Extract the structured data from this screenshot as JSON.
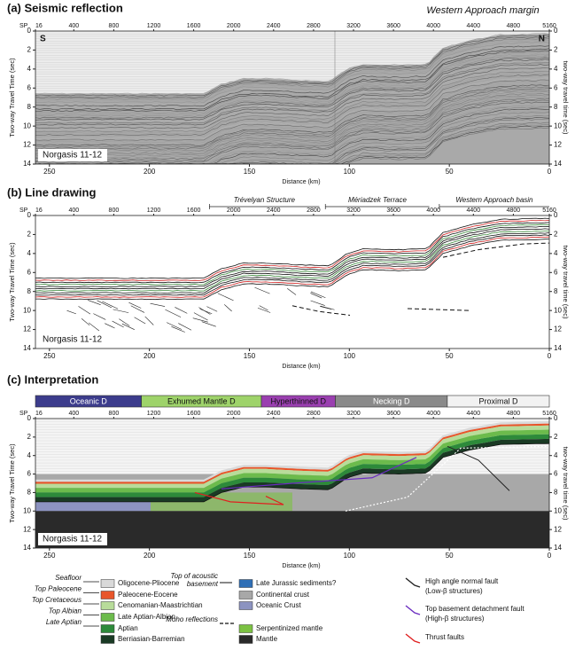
{
  "header": {
    "subtitle": "Western Approach margin"
  },
  "axes": {
    "sp_label": "SP",
    "sp_ticks": [
      16,
      400,
      800,
      1200,
      1600,
      2000,
      2400,
      2800,
      3200,
      3600,
      4000,
      4400,
      4800,
      5160
    ],
    "sp_lim": [
      16,
      5160
    ],
    "distance_ticks": [
      250,
      200,
      150,
      100,
      50,
      0
    ],
    "distance_lim": [
      257,
      0
    ],
    "twt_ticks": [
      0,
      2,
      4,
      6,
      8,
      10,
      12,
      14
    ],
    "twt_lim": [
      0,
      14
    ],
    "left_label": "Two-way Travel Time (sec)",
    "right_label": "two-way travel time (sec)",
    "x_label": "Distance (km)",
    "line_name": "Norgasis 11-12"
  },
  "panels": [
    {
      "title": "(a) Seismic reflection",
      "labels": [
        "S",
        "N"
      ]
    },
    {
      "title": "(b) Line drawing",
      "annotations": [
        {
          "text": "Trévelyan Structure",
          "span": [
            170,
            115
          ]
        },
        {
          "text": "Mériadzek Terrace",
          "span": [
            112,
            60
          ]
        },
        {
          "text": "Western Approach basin",
          "span": [
            55,
            0
          ]
        }
      ]
    },
    {
      "title": "(c) Interpretation",
      "domains": [
        {
          "label": "Oceanic D",
          "color": "#3c3c8c",
          "extent": [
            257,
            204
          ]
        },
        {
          "label": "Exhumed Mantle D",
          "color": "#9ed36a",
          "extent": [
            204,
            144
          ]
        },
        {
          "label": "Hyperthinned D",
          "color": "#9a3fb0",
          "extent": [
            144,
            107
          ]
        },
        {
          "label": "Necking D",
          "color": "#8a8a8a",
          "extent": [
            107,
            51
          ]
        },
        {
          "label": "Proximal D",
          "color": "#f2f2f2",
          "extent": [
            51,
            0
          ]
        }
      ]
    }
  ],
  "legend": {
    "horizons": [
      "Seafloor",
      "Top Paleocene",
      "Top Cretaceous",
      "Top Albian",
      "Late Aptian"
    ],
    "sediments": [
      {
        "label": "Oligocene-Pliocene",
        "color": "#d9d9d9"
      },
      {
        "label": "Paleocene-Eocene",
        "color": "#e8552a"
      },
      {
        "label": "Cenomanian-Maastrichtian",
        "color": "#b8dc9a"
      },
      {
        "label": "Late Aptian-Albian",
        "color": "#6cbb4c"
      },
      {
        "label": "Aptian",
        "color": "#2d8a3a"
      },
      {
        "label": "Berriasian-Barremian",
        "color": "#1a3a24"
      }
    ],
    "basement_label": [
      "Top of acoustic",
      "basement"
    ],
    "moho_label": "Moho reflections",
    "basement": [
      {
        "label": "Late Jurassic sediments?",
        "color": "#2f6fb6"
      },
      {
        "label": "Continental crust",
        "color": "#a8a8a8"
      },
      {
        "label": "Oceanic Crust",
        "color": "#8c93c0"
      },
      {
        "label": "Serpentinized mantle",
        "color": "#7cc243"
      },
      {
        "label": "Mantle",
        "color": "#2a2a2a"
      }
    ],
    "faults": [
      {
        "label": [
          "High angle normal fault",
          "(Low-β structures)"
        ],
        "color": "#222222"
      },
      {
        "label": [
          "Top basement detachment fault",
          "(High-β structures)"
        ],
        "color": "#6a2cc0"
      },
      {
        "label": [
          "Thrust faults"
        ],
        "color": "#e02020"
      }
    ]
  }
}
